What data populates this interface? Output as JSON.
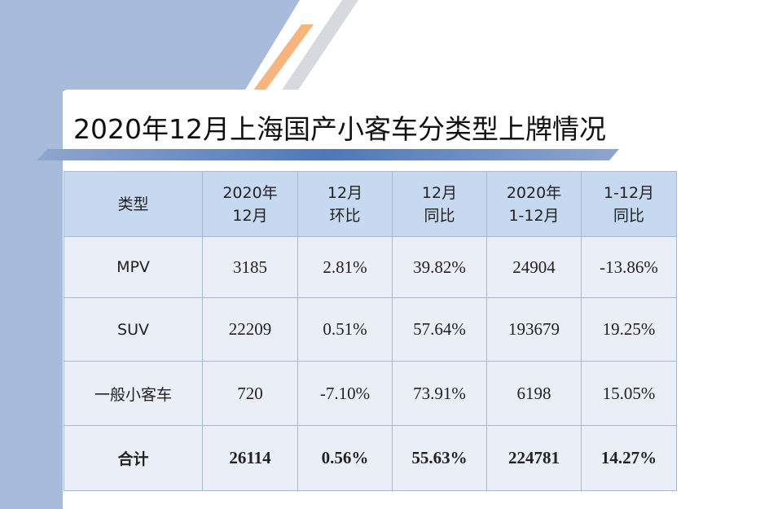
{
  "header": {
    "title": "2020年12月上海国产小客车分类型上牌情况"
  },
  "table": {
    "columns": [
      [
        "类型"
      ],
      [
        "2020年",
        "12月"
      ],
      [
        "12月",
        "环比"
      ],
      [
        "12月",
        "同比"
      ],
      [
        "2020年",
        "1-12月"
      ],
      [
        "1-12月",
        "同比"
      ]
    ],
    "rows": [
      [
        "MPV",
        "3185",
        "2.81%",
        "39.82%",
        "24904",
        "-13.86%"
      ],
      [
        "SUV",
        "22209",
        "0.51%",
        "57.64%",
        "193679",
        "19.25%"
      ],
      [
        "一般小客车",
        "720",
        "-7.10%",
        "73.91%",
        "6198",
        "15.05%"
      ],
      [
        "合计",
        "26114",
        "0.56%",
        "55.63%",
        "224781",
        "14.27%"
      ]
    ]
  }
}
